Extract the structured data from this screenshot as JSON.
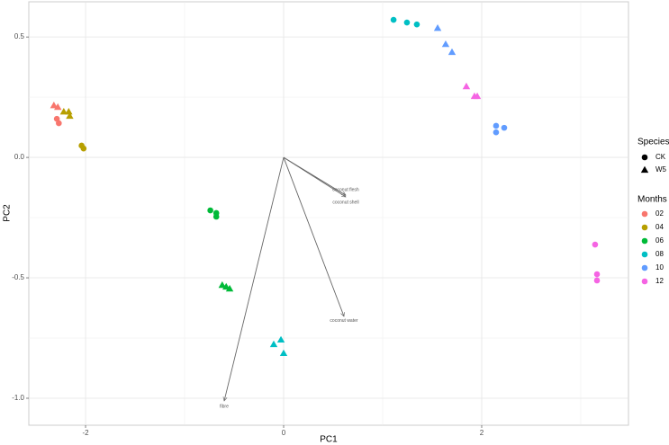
{
  "chart_data": {
    "type": "biplot",
    "xlabel": "PC1",
    "ylabel": "PC2",
    "xlim": [
      -2.573,
      3.482
    ],
    "ylim": [
      -1.112,
      0.646
    ],
    "xticks": [
      -2,
      0,
      2
    ],
    "yticks": [
      {
        "value": -1,
        "label": "-1.0"
      },
      -0.5,
      {
        "value": 0,
        "label": "0.0"
      },
      0.5
    ],
    "grid": true,
    "species_title": "Species",
    "months_title": "Months",
    "species": [
      {
        "name": "CK",
        "shape": "circle"
      },
      {
        "name": "W5",
        "shape": "triangle"
      }
    ],
    "months": [
      {
        "name": "02",
        "color": "#F8766D",
        "points": [
          {
            "x": [
              -2.29,
              -2.27
            ],
            "y": [
              0.16,
              0.142
            ]
          },
          {
            "x": [
              -2.32,
              -2.28
            ],
            "y": [
              0.216,
              0.209
            ]
          }
        ]
      },
      {
        "name": "04",
        "color": "#B79F00",
        "points": [
          {
            "x": [
              -2.04,
              -2.02
            ],
            "y": [
              0.049,
              0.037
            ]
          },
          {
            "x": [
              -2.22,
              -2.17,
              -2.16
            ],
            "y": [
              0.19,
              0.19,
              0.172
            ]
          }
        ]
      },
      {
        "name": "06",
        "color": "#00BA38",
        "points": [
          {
            "x": [
              -0.74,
              -0.68,
              -0.68
            ],
            "y": [
              -0.22,
              -0.231,
              -0.246
            ]
          },
          {
            "x": [
              -0.62,
              -0.58,
              -0.545
            ],
            "y": [
              -0.53,
              -0.537,
              -0.545
            ]
          }
        ]
      },
      {
        "name": "08",
        "color": "#00BFC4",
        "points": [
          {
            "x": [
              1.11,
              1.245,
              1.345
            ],
            "y": [
              0.571,
              0.56,
              0.552
            ]
          },
          {
            "x": [
              -0.1,
              -0.027,
              0
            ],
            "y": [
              -0.776,
              -0.757,
              -0.813
            ]
          }
        ]
      },
      {
        "name": "10",
        "color": "#619CFF",
        "points": [
          {
            "x": [
              2.145,
              2.145,
              2.227
            ],
            "y": [
              0.131,
              0.104,
              0.123
            ]
          },
          {
            "x": [
              1.555,
              1.636,
              1.7
            ],
            "y": [
              0.537,
              0.47,
              0.437
            ]
          }
        ]
      },
      {
        "name": "12",
        "color": "#F564E3",
        "points": [
          {
            "x": [
              3.145,
              3.164,
              3.164
            ],
            "y": [
              -0.362,
              -0.485,
              -0.511
            ]
          },
          {
            "x": [
              1.845,
              1.927,
              1.955
            ],
            "y": [
              0.295,
              0.254,
              0.254
            ]
          }
        ]
      }
    ],
    "loadings": [
      {
        "label": "coconut flesh",
        "x": 0.627,
        "y": -0.157
      },
      {
        "label": "coconut shell",
        "x": 0.627,
        "y": -0.164
      },
      {
        "label": "coconut water",
        "x": 0.609,
        "y": -0.66
      },
      {
        "label": "fibre",
        "x": -0.6,
        "y": -1.011
      }
    ]
  }
}
